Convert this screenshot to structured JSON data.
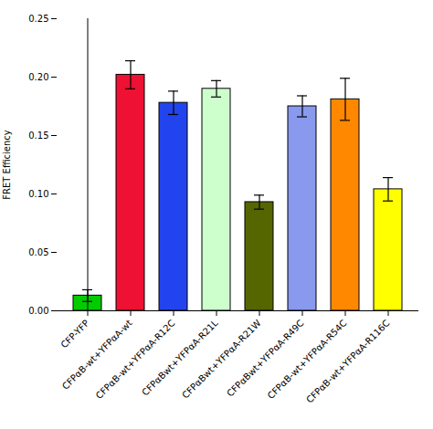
{
  "chart_data": {
    "type": "bar",
    "ylabel": "FRET Efficiency",
    "categories": [
      "CFP-YFP",
      "CFPαB-wt+YFPαA-wt",
      "CFPαB-wt+YFPαA-R12C",
      "CFPαBwt+YFPαA-R21L",
      "CFPαBwt+YFPαA-R21W",
      "CFPαBwt+YFPαA-R49C",
      "CFPαB-wt+YFPαA-R54C",
      "CFPαB-wt+YFPαA-R116C"
    ],
    "values": [
      0.013,
      0.202,
      0.178,
      0.19,
      0.093,
      0.175,
      0.181,
      0.104
    ],
    "errors": [
      0.005,
      0.012,
      0.01,
      0.007,
      0.006,
      0.009,
      0.018,
      0.01
    ],
    "colors": [
      "#00cc00",
      "#ee1133",
      "#2244ee",
      "#ccffcc",
      "#556600",
      "#8899ee",
      "#ff8800",
      "#ffff00"
    ],
    "ylim": [
      0,
      0.25
    ],
    "yticks": [
      {
        "value": 0,
        "label": "0.00"
      },
      {
        "value": 0.05,
        "label": "0.05"
      },
      {
        "value": 0.1,
        "label": "0.10"
      },
      {
        "value": 0.15,
        "label": "0.15"
      },
      {
        "value": 0.2,
        "label": "0.20"
      },
      {
        "value": 0.25,
        "label": "0.25"
      }
    ],
    "grid": false
  }
}
